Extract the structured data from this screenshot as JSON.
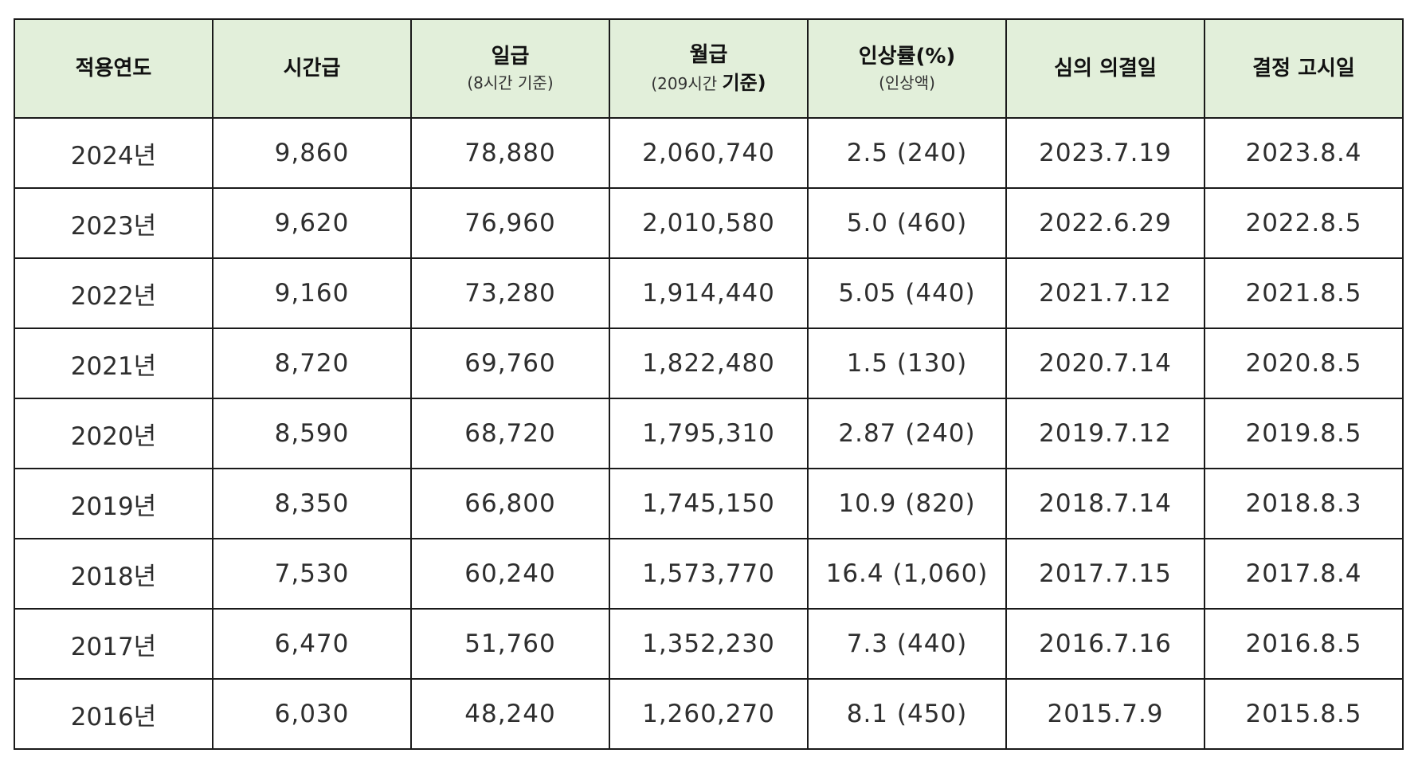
{
  "table": {
    "headers": {
      "year": "적용연도",
      "hourly": "시간급",
      "daily": "일급",
      "daily_sub": "(8시간 기준)",
      "monthly": "월급",
      "monthly_sub_pre": "(209시간 ",
      "monthly_sub_bold": "기준)",
      "rate": "인상률(%)",
      "rate_sub": "(인상액)",
      "decision": "심의 의결일",
      "notice": "결정 고시일"
    },
    "rows": [
      {
        "year": "2024년",
        "hourly": "9,860",
        "daily": "78,880",
        "monthly": "2,060,740",
        "rate": "2.5 (240)",
        "decision": "2023.7.19",
        "notice": "2023.8.4"
      },
      {
        "year": "2023년",
        "hourly": "9,620",
        "daily": "76,960",
        "monthly": "2,010,580",
        "rate": "5.0 (460)",
        "decision": "2022.6.29",
        "notice": "2022.8.5"
      },
      {
        "year": "2022년",
        "hourly": "9,160",
        "daily": "73,280",
        "monthly": "1,914,440",
        "rate": "5.05 (440)",
        "decision": "2021.7.12",
        "notice": "2021.8.5"
      },
      {
        "year": "2021년",
        "hourly": "8,720",
        "daily": "69,760",
        "monthly": "1,822,480",
        "rate": "1.5 (130)",
        "decision": "2020.7.14",
        "notice": "2020.8.5"
      },
      {
        "year": "2020년",
        "hourly": "8,590",
        "daily": "68,720",
        "monthly": "1,795,310",
        "rate": "2.87 (240)",
        "decision": "2019.7.12",
        "notice": "2019.8.5"
      },
      {
        "year": "2019년",
        "hourly": "8,350",
        "daily": "66,800",
        "monthly": "1,745,150",
        "rate": "10.9 (820)",
        "decision": "2018.7.14",
        "notice": "2018.8.3"
      },
      {
        "year": "2018년",
        "hourly": "7,530",
        "daily": "60,240",
        "monthly": "1,573,770",
        "rate": "16.4 (1,060)",
        "decision": "2017.7.15",
        "notice": "2017.8.4"
      },
      {
        "year": "2017년",
        "hourly": "6,470",
        "daily": "51,760",
        "monthly": "1,352,230",
        "rate": "7.3 (440)",
        "decision": "2016.7.16",
        "notice": "2016.8.5"
      },
      {
        "year": "2016년",
        "hourly": "6,030",
        "daily": "48,240",
        "monthly": "1,260,270",
        "rate": "8.1 (450)",
        "decision": "2015.7.9",
        "notice": "2015.8.5"
      }
    ]
  },
  "colors": {
    "header_bg": "#e2efda",
    "border": "#1a1a1a",
    "text": "#2e2e2e"
  }
}
